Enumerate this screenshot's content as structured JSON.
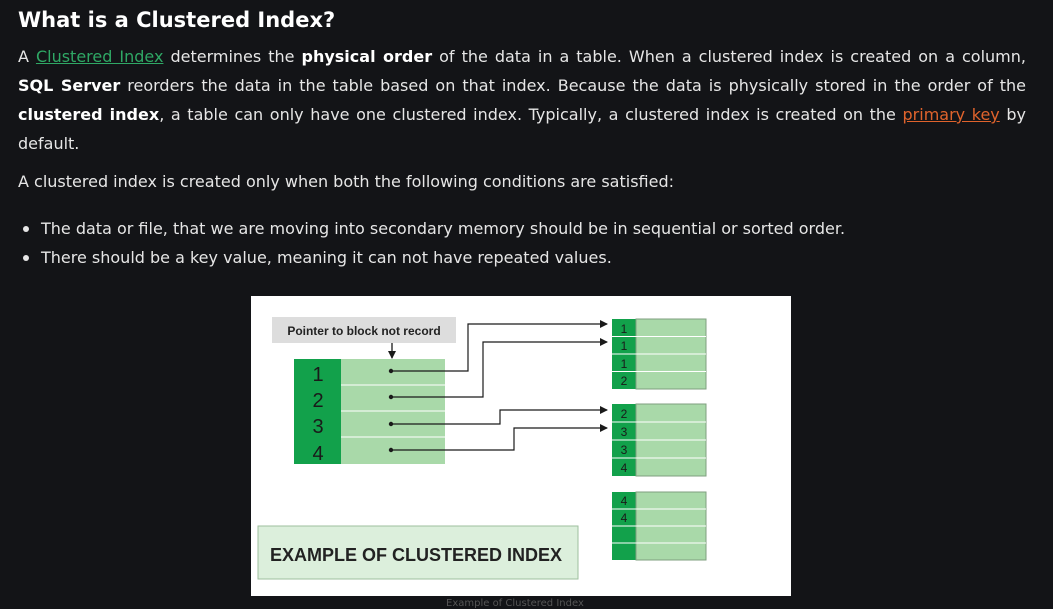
{
  "article": {
    "heading": "What is a Clustered Index?",
    "intro": {
      "t1": "A ",
      "link_clustered": "Clustered Index",
      "t2": " determines the ",
      "b_physical": "physical order",
      "t3": " of the data in a table. When a clustered index is created on a column, ",
      "b_sql": "SQL Server",
      "t4": " reorders the data in the table based on that index. Because the data is physically stored in the order of the ",
      "b_clustered": "clustered index",
      "t5": ", a table can only have one clustered index. Typically, a clustered index is created on the ",
      "link_primary": "primary key",
      "t6": " by default."
    },
    "conditions_intro": "A clustered index is created only when both the following conditions are satisfied:",
    "conditions": [
      "The data or file, that we are moving into secondary memory should be in sequential or sorted order.",
      "There should be a key value, meaning it can not have repeated values."
    ]
  },
  "diagram": {
    "pointer_label": "Pointer to block not record",
    "index_keys": [
      "1",
      "2",
      "3",
      "4"
    ],
    "block1_keys": [
      "1",
      "1",
      "1",
      "2"
    ],
    "block2_keys": [
      "2",
      "3",
      "3",
      "4"
    ],
    "block3_keys": [
      "4",
      "4",
      "",
      ""
    ],
    "title_box": "EXAMPLE OF CLUSTERED INDEX",
    "caption": "Example of Clustered Index",
    "colors": {
      "dark_green": "#12a14b",
      "light_green": "#a9d9a9",
      "title_bg": "#dcefdc",
      "label_bg": "#dddddd",
      "arrow": "#1a1a1a"
    }
  },
  "theme": {
    "background": "#131417",
    "text": "#e6e6e6",
    "link_green": "#2fa865",
    "link_orange": "#e0632c"
  }
}
